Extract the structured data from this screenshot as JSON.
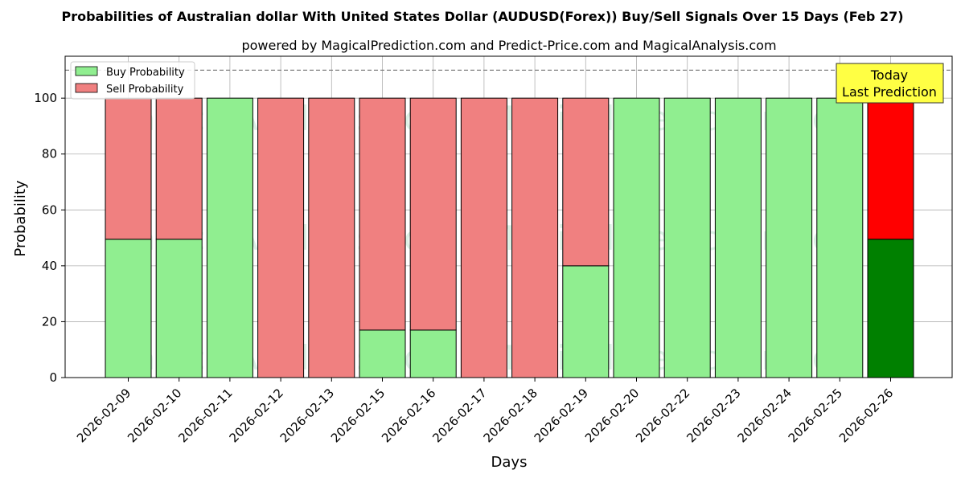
{
  "chart_data": {
    "type": "bar",
    "title": "Probabilities of Australian dollar With United States Dollar (AUDUSD(Forex)) Buy/Sell Signals Over 15 Days (Feb 27)",
    "subtitle": "powered by MagicalPrediction.com and Predict-Price.com and MagicalAnalysis.com",
    "xlabel": "Days",
    "ylabel": "Probability",
    "ylim": [
      0,
      115
    ],
    "yticks": [
      0,
      20,
      40,
      60,
      80,
      100
    ],
    "grid": true,
    "legend_position": "top-left",
    "reference_line": 110,
    "categories": [
      "2026-02-09",
      "2026-02-10",
      "2026-02-11",
      "2026-02-12",
      "2026-02-13",
      "2026-02-15",
      "2026-02-16",
      "2026-02-17",
      "2026-02-18",
      "2026-02-19",
      "2026-02-20",
      "2026-02-22",
      "2026-02-23",
      "2026-02-24",
      "2026-02-25",
      "2026-02-26"
    ],
    "series": [
      {
        "name": "Buy Probability",
        "values": [
          49.5,
          49.5,
          100,
          0,
          0,
          17,
          17,
          0,
          0,
          40,
          100,
          100,
          100,
          100,
          100,
          49.5
        ]
      },
      {
        "name": "Sell Probability",
        "values": [
          50.5,
          50.5,
          0,
          100,
          100,
          83,
          83,
          100,
          100,
          60,
          0,
          0,
          0,
          0,
          0,
          50.5
        ]
      }
    ],
    "annotation": {
      "line1": "Today",
      "line2": "Last Prediction"
    },
    "watermarks": [
      "MagicalAnalysis.com",
      "MagicalPrediction.com"
    ]
  },
  "colors": {
    "buy": "#90ee90",
    "sell": "#f08080",
    "buy_today": "#008000",
    "sell_today": "#ff0000",
    "annotation_bg": "#ffff44"
  }
}
